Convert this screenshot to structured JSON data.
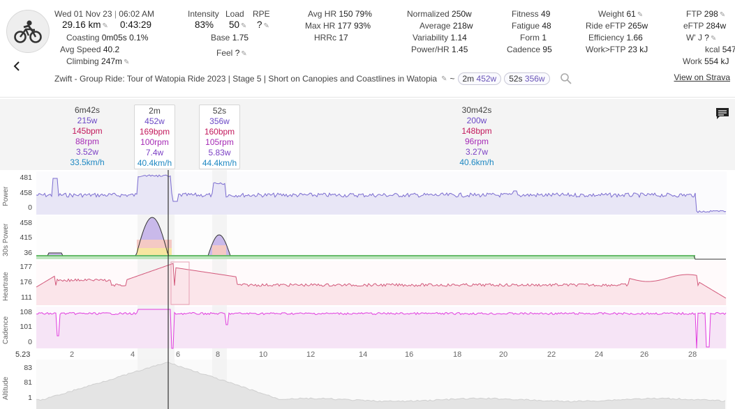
{
  "header": {
    "date": "Wed 01 Nov 23",
    "time": "06:02 AM",
    "distance": "29.16 km",
    "duration": "0:43:29",
    "coasting_label": "Coasting",
    "coasting_value": "0m05s",
    "coasting_pct": "0.1%",
    "avg_speed_label": "Avg Speed",
    "avg_speed_value": "40.2",
    "climbing_label": "Climbing",
    "climbing_value": "247m",
    "intensity_label": "Intensity",
    "intensity_value": "83%",
    "load_label": "Load",
    "load_value": "50",
    "rpe_label": "RPE",
    "rpe_value": "?",
    "base_label": "Base",
    "base_value": "1.75",
    "feel_label": "Feel",
    "feel_value": "?",
    "avg_hr_label": "Avg HR",
    "avg_hr_value": "150",
    "avg_hr_pct": "79%",
    "max_hr_label": "Max HR",
    "max_hr_value": "177",
    "max_hr_pct": "93%",
    "hrrc_label": "HRRc",
    "hrrc_value": "17",
    "normalized_label": "Normalized",
    "normalized_value": "250w",
    "average_label": "Average",
    "average_value": "218w",
    "variability_label": "Variability",
    "variability_value": "1.14",
    "power_hr_label": "Power/HR",
    "power_hr_value": "1.45",
    "fitness_label": "Fitness",
    "fitness_value": "49",
    "fatigue_label": "Fatigue",
    "fatigue_value": "48",
    "form_label": "Form",
    "form_value": "1",
    "cadence_label": "Cadence",
    "cadence_value": "95",
    "weight_label": "Weight",
    "weight_value": "61",
    "ride_eftp_label": "Ride eFTP",
    "ride_eftp_value": "265w",
    "efficiency_label": "Efficiency",
    "efficiency_value": "1.66",
    "work_ftp_label": "Work>FTP",
    "work_ftp_value": "23 kJ",
    "ftp_label": "FTP",
    "ftp_value": "298",
    "eftp_label": "eFTP",
    "eftp_value": "284w",
    "wj_label": "W' J",
    "wj_value": "?",
    "kcal_label": "kcal",
    "kcal_value": "547",
    "work_label": "Work",
    "work_value": "554 kJ",
    "activity_title": "Zwift - Group Ride: Tour of Watopia Ride 2023 | Stage 5 | Short on Canopies and Coastlines in Watopia",
    "tilde": "~",
    "pill1_dur": "2m",
    "pill1_pw": "452w",
    "pill2_dur": "52s",
    "pill2_pw": "356w",
    "strava_link": "View on Strava"
  },
  "intervals": [
    {
      "dur": "6m42s",
      "power": "215w",
      "hr": "145bpm",
      "cad": "88rpm",
      "wkg": "3.52w",
      "speed": "33.5km/h"
    },
    {
      "dur": "2m",
      "power": "452w",
      "hr": "169bpm",
      "cad": "100rpm",
      "wkg": "7.4w",
      "speed": "40.4km/h"
    },
    {
      "dur": "52s",
      "power": "356w",
      "hr": "160bpm",
      "cad": "105rpm",
      "wkg": "5.83w",
      "speed": "44.4km/h"
    },
    {
      "dur": "30m42s",
      "power": "200w",
      "hr": "148bpm",
      "cad": "96rpm",
      "wkg": "3.27w",
      "speed": "40.6km/h"
    }
  ],
  "charts": {
    "power": {
      "title": "Power",
      "ticks": [
        "481",
        "458",
        "0"
      ]
    },
    "power30": {
      "title": "30s Power",
      "ticks": [
        "458",
        "415",
        "36"
      ]
    },
    "heartrate": {
      "title": "Heartrate",
      "ticks": [
        "177",
        "176",
        "111"
      ]
    },
    "cadence": {
      "title": "Cadence",
      "ticks": [
        "108",
        "101",
        "0"
      ]
    },
    "altitude": {
      "title": "Altitude",
      "ticks": [
        "83",
        "81",
        "1"
      ]
    },
    "x_start": "5.23",
    "x_ticks": [
      "2",
      "4",
      "6",
      "8",
      "10",
      "12",
      "14",
      "16",
      "18",
      "20",
      "22",
      "24",
      "26",
      "28"
    ]
  },
  "colors": {
    "power_line": "#7b6cd0",
    "power_fill": "#e8e6f6",
    "hr_line": "#d2587a",
    "hr_fill": "#fbe5ea",
    "cad_line": "#e03cde",
    "cad_fill": "#f6e4f6",
    "alt_fill": "#e4e4e4",
    "zone_green": "#4caf50"
  }
}
